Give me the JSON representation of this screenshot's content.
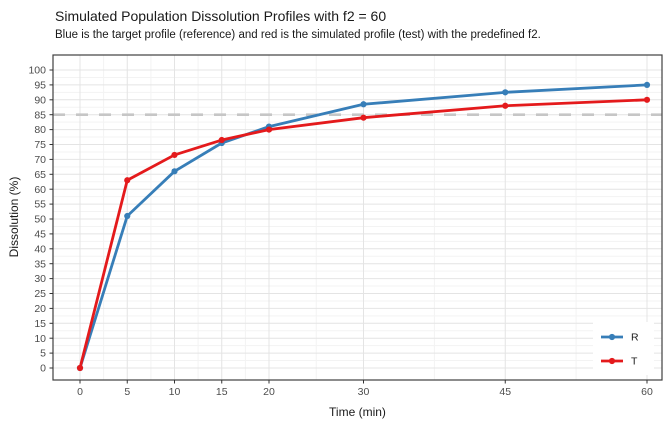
{
  "chart_data": {
    "type": "line",
    "title": "Simulated Population Dissolution Profiles with f2 = 60",
    "subtitle": "Blue is the target profile (reference) and red is the simulated profile (test) with the predefined f2.",
    "xlabel": "Time (min)",
    "ylabel": "Dissolution (%)",
    "x": [
      0,
      5,
      10,
      15,
      20,
      30,
      45,
      60
    ],
    "series": [
      {
        "name": "R",
        "role": "reference (target) profile",
        "color": "#377eb8",
        "values": [
          0,
          51,
          66,
          75.5,
          81,
          88.5,
          92.5,
          95
        ]
      },
      {
        "name": "T",
        "role": "test (simulated) profile",
        "color": "#e41a1c",
        "values": [
          0,
          63,
          71.5,
          76.5,
          80,
          84,
          88,
          90
        ]
      }
    ],
    "reference_line": {
      "y": 85,
      "color": "#c6c6c6",
      "style": "dashed"
    },
    "x_ticks": [
      0,
      5,
      10,
      15,
      20,
      30,
      45,
      60
    ],
    "y_ticks": [
      0,
      5,
      10,
      15,
      20,
      25,
      30,
      35,
      40,
      45,
      50,
      55,
      60,
      65,
      70,
      75,
      80,
      85,
      90,
      95,
      100
    ],
    "xlim": [
      0,
      60
    ],
    "ylim": [
      0,
      100
    ],
    "grid": "major and minor, light gray on white",
    "legend_position": "inside right, no border, white background",
    "colors": {
      "background": "#ffffff",
      "grid_major": "#e4e4e4",
      "grid_minor": "#f3f3f3",
      "panel_border": "#404040",
      "tick_mark": "#333333",
      "tick_label": "#4d4d4d",
      "axis_title": "#1a1a1a",
      "text": "#1a1a1a"
    }
  }
}
